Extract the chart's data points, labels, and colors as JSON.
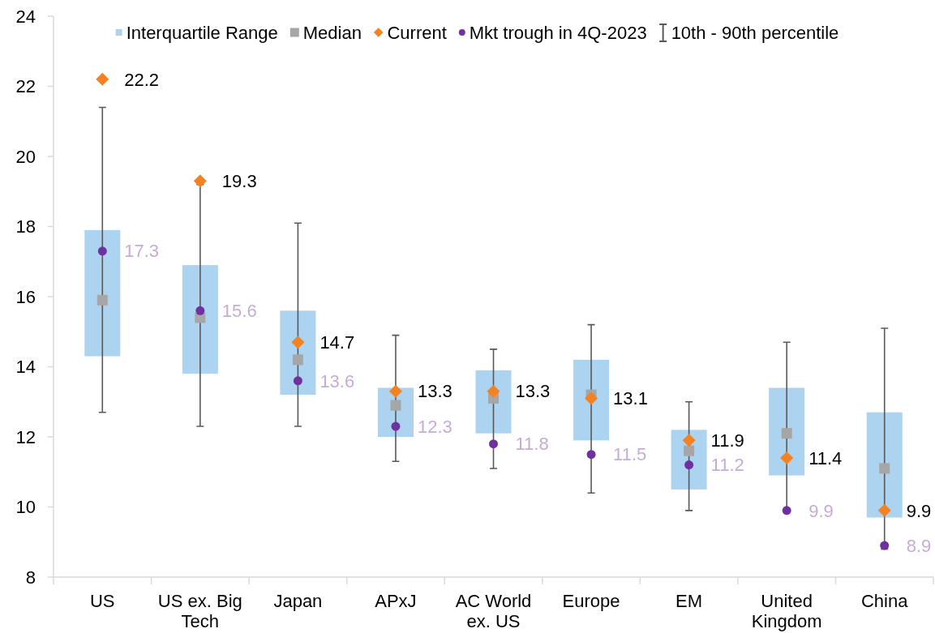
{
  "chart_data": {
    "type": "box",
    "categories": [
      "US",
      "US ex. Big Tech",
      "Japan",
      "APxJ",
      "AC World ex. US",
      "Europe",
      "EM",
      "United Kingdom",
      "China"
    ],
    "ylim": [
      8,
      24
    ],
    "yticks": [
      8,
      10,
      12,
      14,
      16,
      18,
      20,
      22,
      24
    ],
    "legend": "top",
    "annotations": [
      "Median",
      "10th - 90th percentile"
    ],
    "series": [
      {
        "name": "Interquartile Range",
        "color": "#acd3f0",
        "boxes": [
          {
            "low": 12.7,
            "q1": 14.3,
            "median": 15.9,
            "q3": 17.9,
            "high": 21.4
          },
          {
            "low": 12.3,
            "q1": 13.8,
            "median": 15.4,
            "q3": 16.9,
            "high": 19.2
          },
          {
            "low": 12.3,
            "q1": 13.2,
            "median": 14.2,
            "q3": 15.6,
            "high": 18.1
          },
          {
            "low": 11.3,
            "q1": 12.0,
            "median": 12.9,
            "q3": 13.4,
            "high": 14.9
          },
          {
            "low": 11.1,
            "q1": 12.1,
            "median": 13.1,
            "q3": 13.9,
            "high": 14.5
          },
          {
            "low": 10.4,
            "q1": 11.9,
            "median": 13.2,
            "q3": 14.2,
            "high": 15.2
          },
          {
            "low": 9.9,
            "q1": 10.5,
            "median": 11.6,
            "q3": 12.2,
            "high": 13.0
          },
          {
            "low": 9.9,
            "q1": 10.9,
            "median": 12.1,
            "q3": 13.4,
            "high": 14.7
          },
          {
            "low": 8.8,
            "q1": 9.7,
            "median": 11.1,
            "q3": 12.7,
            "high": 15.1
          }
        ]
      },
      {
        "name": "Current",
        "type": "scatter",
        "marker": "diamond",
        "color": "#f58220",
        "x": [
          "US",
          "US ex. Big Tech",
          "Japan",
          "APxJ",
          "AC World ex. US",
          "Europe",
          "EM",
          "United Kingdom",
          "China"
        ],
        "values": [
          22.2,
          19.3,
          14.7,
          13.3,
          13.3,
          13.1,
          11.9,
          11.4,
          9.9
        ],
        "value_labels": [
          "22.2",
          "19.3",
          "14.7",
          "13.3",
          "13.3",
          "13.1",
          "11.9",
          "11.4",
          "9.9"
        ]
      },
      {
        "name": "Mkt trough in 4Q-2023",
        "type": "scatter",
        "marker": "circle",
        "color": "#7030a0",
        "x": [
          "US",
          "US ex. Big Tech",
          "Japan",
          "APxJ",
          "AC World ex. US",
          "Europe",
          "EM",
          "United Kingdom",
          "China"
        ],
        "values": [
          17.3,
          15.6,
          13.6,
          12.3,
          11.8,
          11.5,
          11.2,
          9.9,
          8.9
        ],
        "value_labels": [
          "17.3",
          "15.6",
          "13.6",
          "12.3",
          "11.8",
          "11.5",
          "11.2",
          "9.9",
          "8.9"
        ]
      }
    ]
  }
}
